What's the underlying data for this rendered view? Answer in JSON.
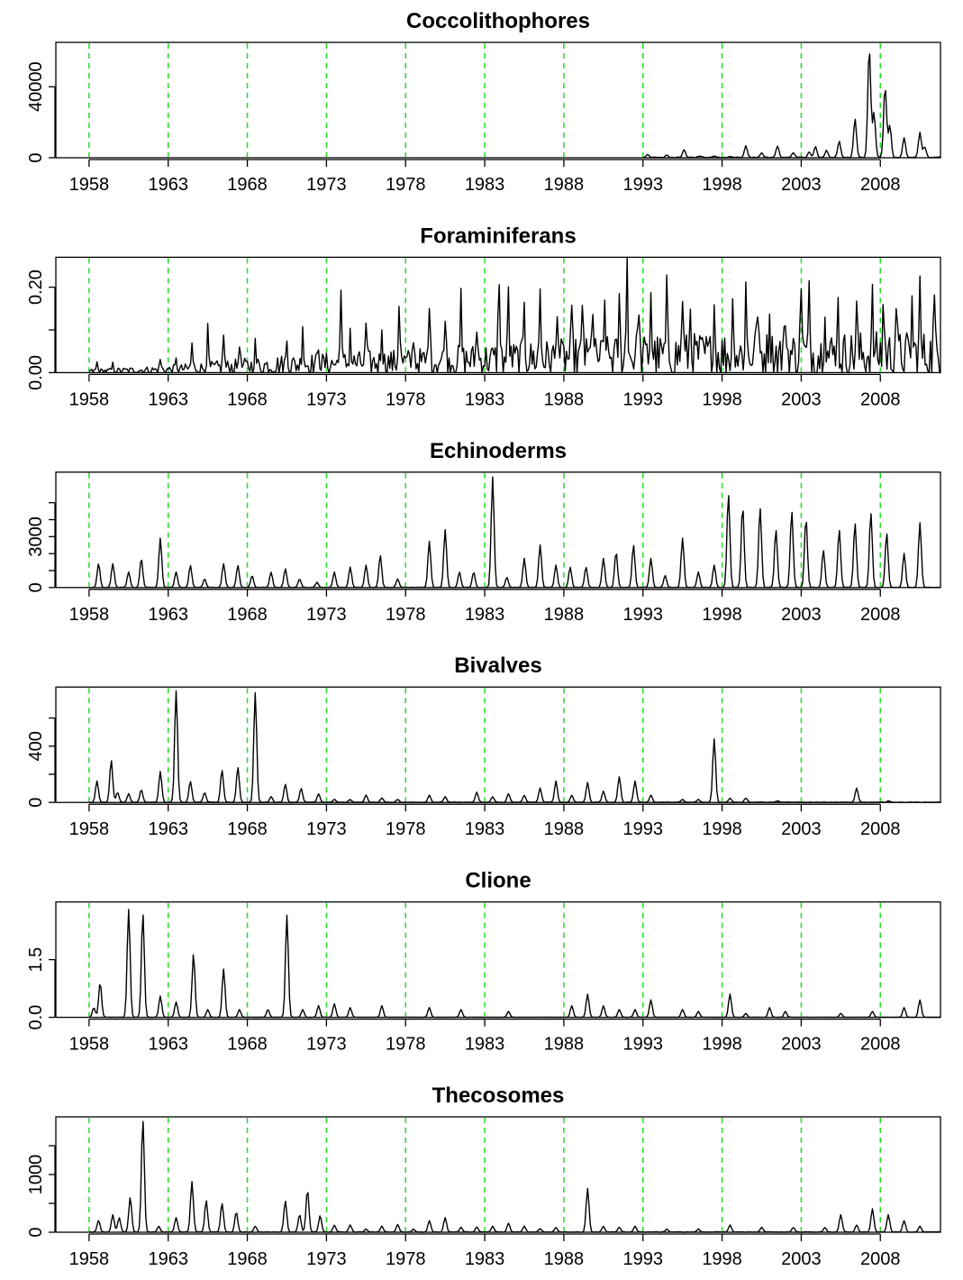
{
  "chart_data": {
    "type": "line",
    "panels": [
      {
        "title": "Coccolithophores",
        "ylim": [
          0,
          65000
        ],
        "yticks": [
          0,
          40000
        ],
        "yticklabels": [
          "0",
          "40000"
        ],
        "data_start": 1993.0,
        "baseline": 0,
        "base_noise": 400,
        "peaks": [
          [
            1993.3,
            1500
          ],
          [
            1994.5,
            1200
          ],
          [
            1995.6,
            4500
          ],
          [
            1996.6,
            800
          ],
          [
            1997.5,
            800
          ],
          [
            1998.5,
            600
          ],
          [
            1999.5,
            6500
          ],
          [
            2000.5,
            2500
          ],
          [
            2001.5,
            6500
          ],
          [
            2002.5,
            2800
          ],
          [
            2003.5,
            3000
          ],
          [
            2003.9,
            6000
          ],
          [
            2004.6,
            4000
          ],
          [
            2005.4,
            9000
          ],
          [
            2006.4,
            22000
          ],
          [
            2007.3,
            62000
          ],
          [
            2007.6,
            25000
          ],
          [
            2008.3,
            40000
          ],
          [
            2008.6,
            18000
          ],
          [
            2009.5,
            11000
          ],
          [
            2010.5,
            14000
          ],
          [
            2010.8,
            6000
          ]
        ]
      },
      {
        "title": "Foraminiferans",
        "ylim": [
          0,
          0.27
        ],
        "yticks": [
          0,
          0.1,
          0.2
        ],
        "yticklabels": [
          "0.00",
          "",
          "0.20"
        ],
        "data_start": 1958.0,
        "baseline": 0,
        "noisy": true,
        "noise_scale": [
          [
            1958,
            0.006
          ],
          [
            1963,
            0.012
          ],
          [
            1970,
            0.03
          ],
          [
            1978,
            0.04
          ],
          [
            1983,
            0.05
          ],
          [
            1990,
            0.06
          ],
          [
            1998,
            0.07
          ],
          [
            2011,
            0.07
          ]
        ],
        "peaks": [
          [
            1958.5,
            0.02
          ],
          [
            1959.5,
            0.015
          ],
          [
            1962.5,
            0.025
          ],
          [
            1963.5,
            0.02
          ],
          [
            1964.5,
            0.06
          ],
          [
            1965.5,
            0.09
          ],
          [
            1966.5,
            0.08
          ],
          [
            1967.5,
            0.06
          ],
          [
            1968.5,
            0.05
          ],
          [
            1970.5,
            0.06
          ],
          [
            1971.5,
            0.1
          ],
          [
            1972.5,
            0.05
          ],
          [
            1973.9,
            0.18
          ],
          [
            1974.5,
            0.08
          ],
          [
            1975.5,
            0.09
          ],
          [
            1976.5,
            0.1
          ],
          [
            1977.6,
            0.16
          ],
          [
            1978.5,
            0.07
          ],
          [
            1979.5,
            0.15
          ],
          [
            1980.5,
            0.12
          ],
          [
            1981.5,
            0.14
          ],
          [
            1982.5,
            0.09
          ],
          [
            1983.9,
            0.22
          ],
          [
            1984.5,
            0.16
          ],
          [
            1985.5,
            0.15
          ],
          [
            1986.5,
            0.17
          ],
          [
            1987.6,
            0.14
          ],
          [
            1988.5,
            0.08
          ],
          [
            1989.2,
            0.14
          ],
          [
            1989.8,
            0.15
          ],
          [
            1990.6,
            0.14
          ],
          [
            1991.5,
            0.12
          ],
          [
            1992.0,
            0.26
          ],
          [
            1992.7,
            0.14
          ],
          [
            1993.5,
            0.16
          ],
          [
            1994.5,
            0.14
          ],
          [
            1995.5,
            0.15
          ],
          [
            1996.0,
            0.11
          ],
          [
            1997.5,
            0.12
          ],
          [
            1998.7,
            0.14
          ],
          [
            1999.5,
            0.16
          ],
          [
            2000.2,
            0.14
          ],
          [
            2001.0,
            0.12
          ],
          [
            2002.0,
            0.11
          ],
          [
            2003.0,
            0.19
          ],
          [
            2003.5,
            0.13
          ],
          [
            2004.5,
            0.13
          ],
          [
            2005.3,
            0.14
          ],
          [
            2006.5,
            0.11
          ],
          [
            2007.5,
            0.12
          ],
          [
            2008.2,
            0.14
          ],
          [
            2009.0,
            0.13
          ],
          [
            2010.0,
            0.12
          ],
          [
            2010.5,
            0.15
          ],
          [
            2011.4,
            0.13
          ]
        ]
      },
      {
        "title": "Echinoderms",
        "ylim": [
          0,
          6800
        ],
        "yticks": [
          0,
          1000,
          2000,
          3000,
          4000,
          5000
        ],
        "yticklabels": [
          "0",
          "",
          "",
          "3000",
          "",
          ""
        ],
        "data_start": 1958.0,
        "baseline": 0,
        "base_noise": 20,
        "peaks": [
          [
            1958.6,
            1400
          ],
          [
            1959.5,
            1400
          ],
          [
            1960.5,
            900
          ],
          [
            1961.3,
            1700
          ],
          [
            1962.5,
            2900
          ],
          [
            1963.5,
            900
          ],
          [
            1964.4,
            1300
          ],
          [
            1965.3,
            500
          ],
          [
            1966.5,
            1400
          ],
          [
            1967.4,
            1300
          ],
          [
            1968.3,
            700
          ],
          [
            1969.5,
            900
          ],
          [
            1970.4,
            1100
          ],
          [
            1971.3,
            500
          ],
          [
            1972.4,
            300
          ],
          [
            1973.5,
            900
          ],
          [
            1974.5,
            1200
          ],
          [
            1975.5,
            1300
          ],
          [
            1976.4,
            1900
          ],
          [
            1977.5,
            500
          ],
          [
            1979.5,
            2700
          ],
          [
            1980.5,
            3400
          ],
          [
            1981.4,
            900
          ],
          [
            1982.3,
            900
          ],
          [
            1983.5,
            6500
          ],
          [
            1984.4,
            600
          ],
          [
            1985.5,
            1700
          ],
          [
            1986.5,
            2500
          ],
          [
            1987.5,
            1300
          ],
          [
            1988.4,
            1200
          ],
          [
            1989.4,
            1200
          ],
          [
            1990.5,
            1700
          ],
          [
            1991.3,
            2100
          ],
          [
            1992.4,
            2500
          ],
          [
            1993.5,
            1700
          ],
          [
            1994.4,
            700
          ],
          [
            1995.5,
            2900
          ],
          [
            1996.5,
            900
          ],
          [
            1997.5,
            1300
          ],
          [
            1998.4,
            5500
          ],
          [
            1999.3,
            4800
          ],
          [
            2000.4,
            4700
          ],
          [
            2001.4,
            3400
          ],
          [
            2002.4,
            4500
          ],
          [
            2003.3,
            4100
          ],
          [
            2004.4,
            2200
          ],
          [
            2005.4,
            3400
          ],
          [
            2006.4,
            3800
          ],
          [
            2007.4,
            4400
          ],
          [
            2008.4,
            3200
          ],
          [
            2009.5,
            2000
          ],
          [
            2010.5,
            3800
          ]
        ]
      },
      {
        "title": "Bivalves",
        "ylim": [
          0,
          820
        ],
        "yticks": [
          0,
          200,
          400,
          600
        ],
        "yticklabels": [
          "0",
          "",
          "400",
          ""
        ],
        "data_start": 1958.0,
        "baseline": 0,
        "base_noise": 3,
        "peaks": [
          [
            1958.5,
            150
          ],
          [
            1959.4,
            300
          ],
          [
            1959.8,
            70
          ],
          [
            1960.5,
            60
          ],
          [
            1961.3,
            90
          ],
          [
            1962.5,
            220
          ],
          [
            1963.5,
            790
          ],
          [
            1964.4,
            150
          ],
          [
            1965.3,
            70
          ],
          [
            1966.4,
            230
          ],
          [
            1967.4,
            250
          ],
          [
            1968.5,
            780
          ],
          [
            1969.5,
            40
          ],
          [
            1970.4,
            130
          ],
          [
            1971.4,
            100
          ],
          [
            1972.5,
            60
          ],
          [
            1973.5,
            20
          ],
          [
            1974.5,
            20
          ],
          [
            1975.5,
            50
          ],
          [
            1976.5,
            30
          ],
          [
            1977.5,
            20
          ],
          [
            1979.5,
            50
          ],
          [
            1980.5,
            40
          ],
          [
            1982.5,
            70
          ],
          [
            1983.5,
            40
          ],
          [
            1984.5,
            60
          ],
          [
            1985.5,
            50
          ],
          [
            1986.5,
            100
          ],
          [
            1987.5,
            150
          ],
          [
            1988.5,
            50
          ],
          [
            1989.5,
            140
          ],
          [
            1990.5,
            80
          ],
          [
            1991.5,
            180
          ],
          [
            1992.5,
            150
          ],
          [
            1993.5,
            50
          ],
          [
            1995.5,
            20
          ],
          [
            1996.5,
            20
          ],
          [
            1997.5,
            450
          ],
          [
            1998.5,
            30
          ],
          [
            1999.5,
            30
          ],
          [
            2001.5,
            10
          ],
          [
            2006.5,
            100
          ],
          [
            2008.5,
            10
          ]
        ]
      },
      {
        "title": "Clione",
        "ylim": [
          0,
          3.0
        ],
        "yticks": [
          0,
          1.5
        ],
        "yticklabels": [
          "0.0",
          "1.5"
        ],
        "data_start": 1958.0,
        "baseline": 0,
        "base_noise": 0.005,
        "peaks": [
          [
            1958.3,
            0.25
          ],
          [
            1958.7,
            0.9
          ],
          [
            1960.5,
            2.8
          ],
          [
            1961.4,
            2.7
          ],
          [
            1962.5,
            0.55
          ],
          [
            1963.5,
            0.4
          ],
          [
            1964.6,
            1.65
          ],
          [
            1965.5,
            0.2
          ],
          [
            1966.5,
            1.25
          ],
          [
            1967.5,
            0.2
          ],
          [
            1969.3,
            0.2
          ],
          [
            1970.5,
            2.65
          ],
          [
            1971.5,
            0.2
          ],
          [
            1972.5,
            0.3
          ],
          [
            1973.5,
            0.35
          ],
          [
            1974.5,
            0.25
          ],
          [
            1976.5,
            0.3
          ],
          [
            1979.5,
            0.25
          ],
          [
            1981.5,
            0.2
          ],
          [
            1984.5,
            0.15
          ],
          [
            1988.5,
            0.3
          ],
          [
            1989.5,
            0.6
          ],
          [
            1990.5,
            0.3
          ],
          [
            1991.5,
            0.2
          ],
          [
            1992.5,
            0.2
          ],
          [
            1993.5,
            0.45
          ],
          [
            1995.5,
            0.2
          ],
          [
            1996.5,
            0.15
          ],
          [
            1998.5,
            0.6
          ],
          [
            1999.5,
            0.1
          ],
          [
            2001.0,
            0.25
          ],
          [
            2002.0,
            0.15
          ],
          [
            2005.5,
            0.1
          ],
          [
            2007.5,
            0.15
          ],
          [
            2009.5,
            0.25
          ],
          [
            2010.5,
            0.45
          ]
        ]
      },
      {
        "title": "Thecosomes",
        "ylim": [
          0,
          2000
        ],
        "yticks": [
          0,
          500,
          1000,
          1500
        ],
        "yticklabels": [
          "0",
          "",
          "1000",
          ""
        ],
        "data_start": 1958.0,
        "baseline": 0,
        "base_noise": 8,
        "peaks": [
          [
            1958.6,
            200
          ],
          [
            1959.5,
            300
          ],
          [
            1959.9,
            250
          ],
          [
            1960.6,
            600
          ],
          [
            1961.4,
            1950
          ],
          [
            1962.4,
            100
          ],
          [
            1963.5,
            250
          ],
          [
            1964.5,
            870
          ],
          [
            1965.4,
            550
          ],
          [
            1966.4,
            500
          ],
          [
            1967.3,
            350
          ],
          [
            1968.5,
            100
          ],
          [
            1970.4,
            540
          ],
          [
            1971.3,
            300
          ],
          [
            1971.8,
            730
          ],
          [
            1972.6,
            280
          ],
          [
            1973.5,
            120
          ],
          [
            1974.5,
            120
          ],
          [
            1975.5,
            50
          ],
          [
            1976.5,
            100
          ],
          [
            1977.5,
            130
          ],
          [
            1978.5,
            50
          ],
          [
            1979.5,
            200
          ],
          [
            1980.5,
            250
          ],
          [
            1981.5,
            80
          ],
          [
            1982.5,
            90
          ],
          [
            1983.5,
            100
          ],
          [
            1984.5,
            150
          ],
          [
            1985.5,
            100
          ],
          [
            1986.5,
            60
          ],
          [
            1987.5,
            80
          ],
          [
            1989.5,
            750
          ],
          [
            1990.5,
            100
          ],
          [
            1991.5,
            80
          ],
          [
            1992.5,
            100
          ],
          [
            1994.5,
            50
          ],
          [
            1996.5,
            50
          ],
          [
            1998.5,
            120
          ],
          [
            2000.5,
            80
          ],
          [
            2002.5,
            80
          ],
          [
            2004.5,
            80
          ],
          [
            2005.5,
            300
          ],
          [
            2006.5,
            120
          ],
          [
            2007.5,
            400
          ],
          [
            2008.5,
            300
          ],
          [
            2009.5,
            200
          ],
          [
            2010.5,
            100
          ]
        ]
      }
    ],
    "x_range": [
      1955.9,
      2011.8
    ],
    "data_end": 2011.8,
    "x_ticks": [
      1958,
      1963,
      1968,
      1973,
      1978,
      1983,
      1988,
      1993,
      1998,
      2003,
      2008
    ],
    "x_tick_labels": [
      "1958",
      "1963",
      "1968",
      "1973",
      "1978",
      "1983",
      "1988",
      "1993",
      "1998",
      "2003",
      "2008"
    ],
    "ref_lines": [
      1958,
      1963,
      1968,
      1973,
      1978,
      1983,
      1988,
      1993,
      1998,
      2003,
      2008
    ],
    "ref_line_color": "#22dd22",
    "line_color": "#000000"
  }
}
